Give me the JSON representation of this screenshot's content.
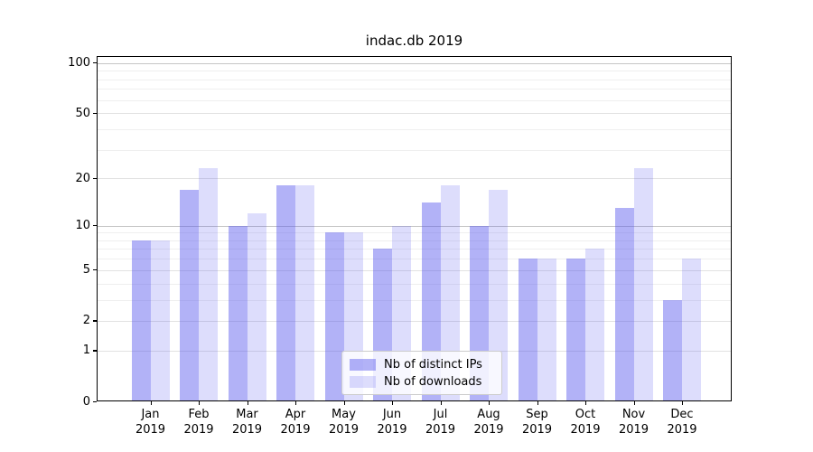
{
  "figure": {
    "background": "#ffffff"
  },
  "chart_data": {
    "type": "bar",
    "title": "indac.db 2019",
    "categories": [
      "Jan 2019",
      "Feb 2019",
      "Mar 2019",
      "Apr 2019",
      "May 2019",
      "Jun 2019",
      "Jul 2019",
      "Aug 2019",
      "Sep 2019",
      "Oct 2019",
      "Nov 2019",
      "Dec 2019"
    ],
    "series": [
      {
        "name": "Nb of distinct IPs",
        "color": "#5555ee",
        "alpha": 0.45,
        "apparent_color": "#a8a8f6",
        "values": [
          8,
          17,
          10,
          18,
          9,
          7,
          14,
          10,
          6,
          6,
          13,
          3
        ]
      },
      {
        "name": "Nb of downloads",
        "color": "#5555ee",
        "alpha": 0.2,
        "apparent_color": "#dcdcf9",
        "values": [
          8,
          23,
          12,
          18,
          9,
          10,
          18,
          17,
          6,
          7,
          23,
          6
        ]
      }
    ],
    "xlabel": "",
    "ylabel": "",
    "yscale": "log10(1+y)",
    "ylim": [
      0,
      110
    ],
    "yticks": [
      0,
      1,
      2,
      5,
      10,
      20,
      50,
      100
    ],
    "minor_gridlines": [
      3,
      4,
      6,
      7,
      8,
      9,
      30,
      40,
      60,
      70,
      80,
      90
    ],
    "grid": true,
    "legend_position": "lower center"
  }
}
